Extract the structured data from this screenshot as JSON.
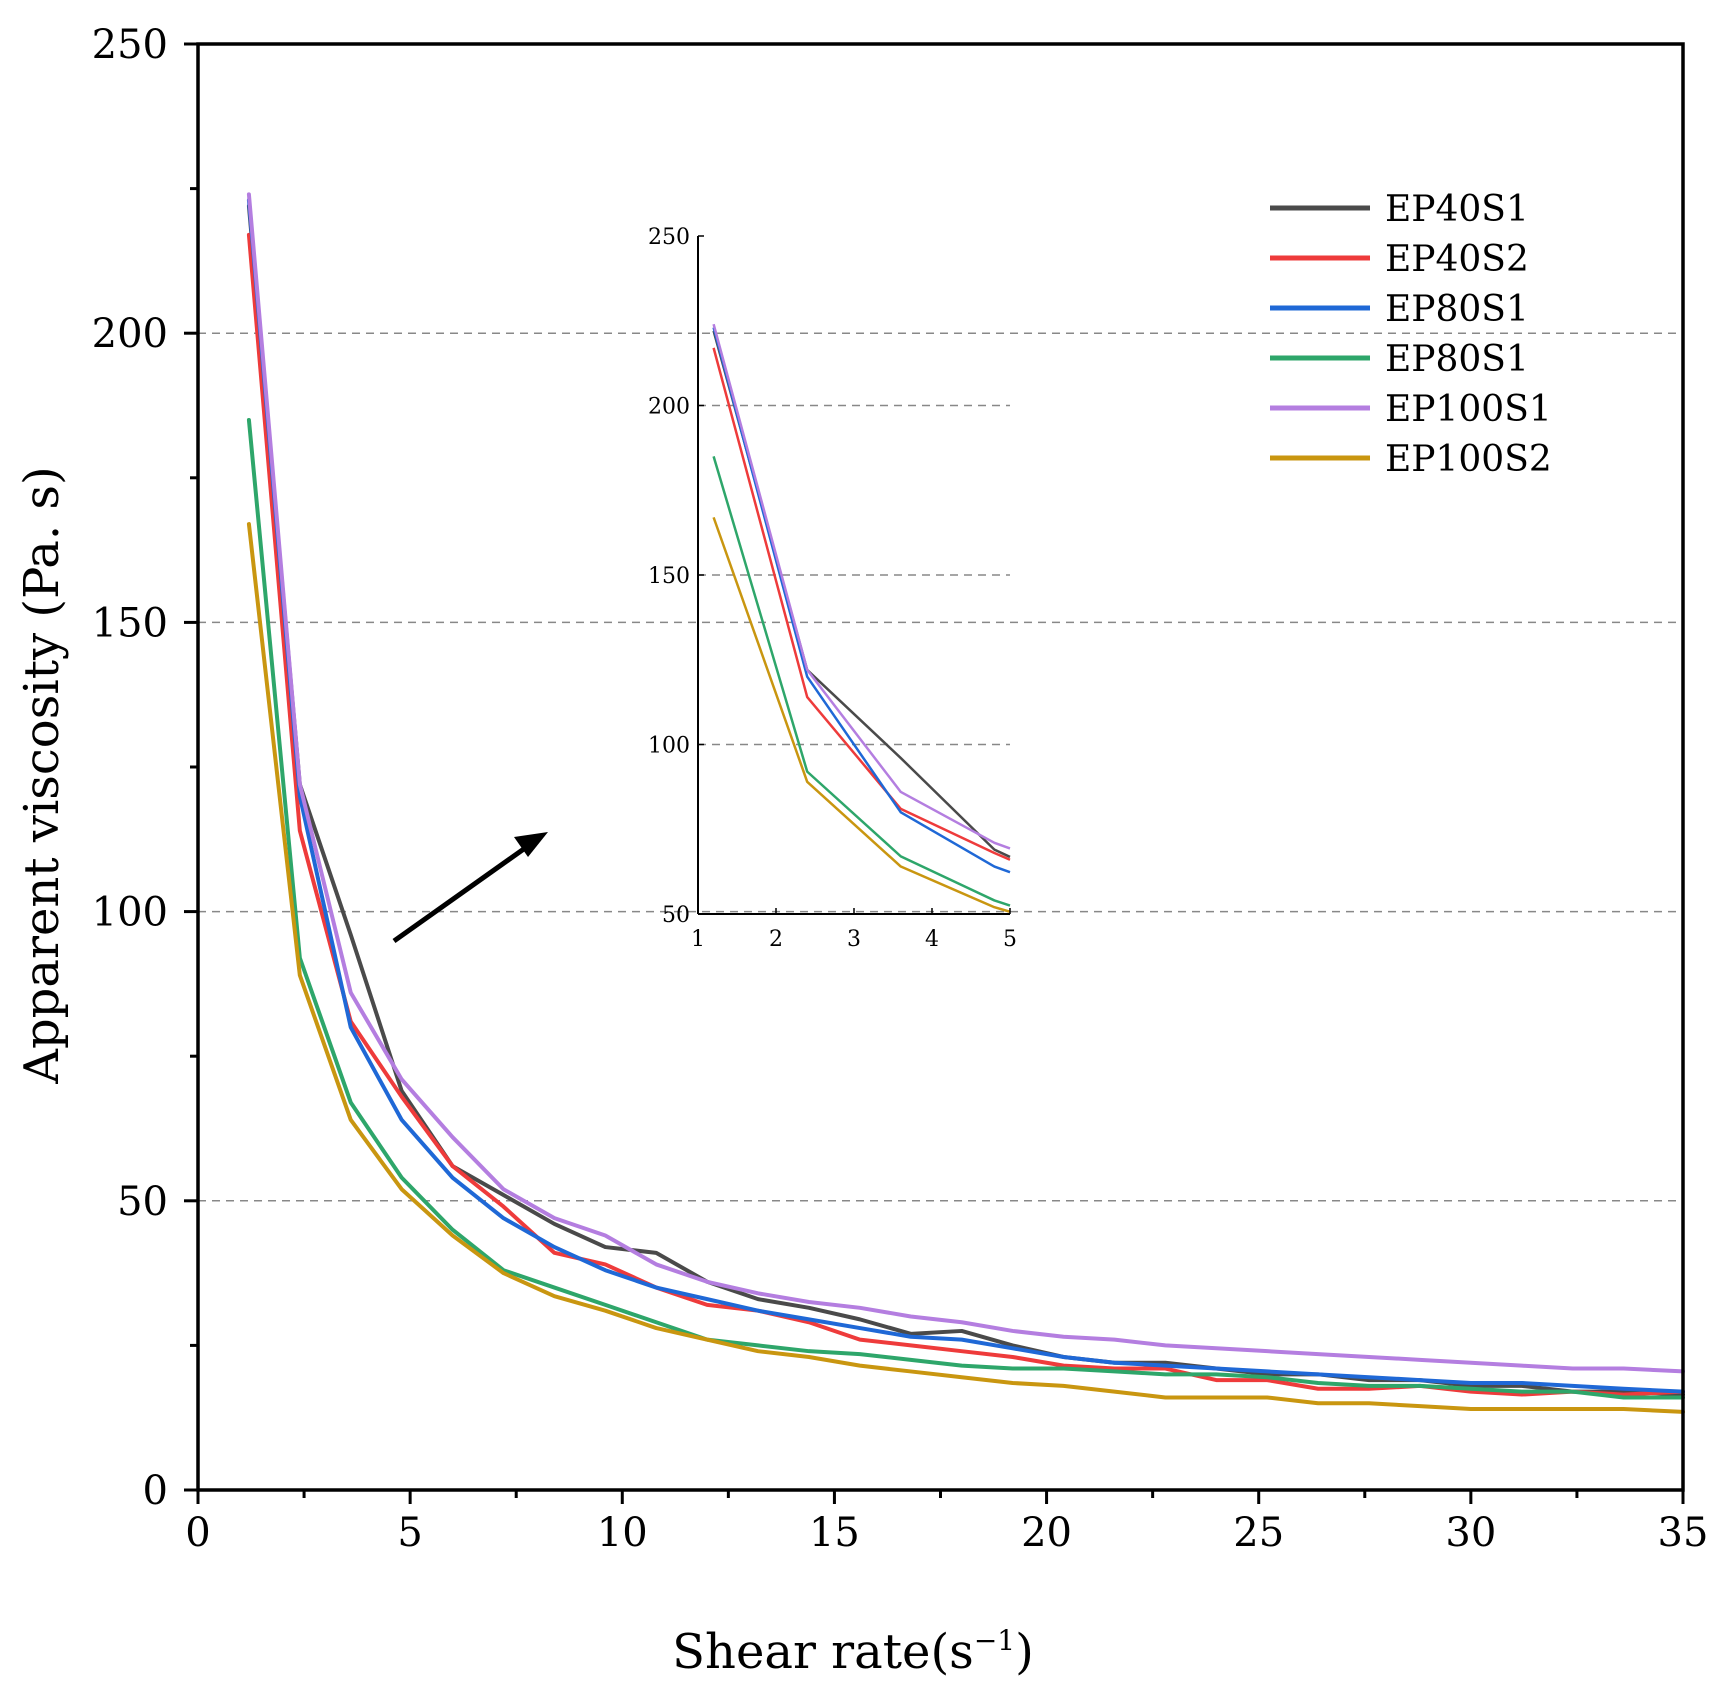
{
  "chart_data": {
    "type": "line",
    "xlabel": "Shear rate",
    "xlabel_unit_base": "s",
    "xlabel_unit_exp": "−1",
    "ylabel": "Apparent viscosity (Pa. s)",
    "xlim": [
      0,
      35
    ],
    "ylim": [
      0,
      250
    ],
    "x_ticks": [
      0,
      5,
      10,
      15,
      20,
      25,
      30,
      35
    ],
    "y_ticks": [
      0,
      50,
      100,
      150,
      200,
      250
    ],
    "x_tick_labels": [
      "0",
      "5",
      "10",
      "15",
      "20",
      "25",
      "30",
      "35"
    ],
    "y_tick_labels": [
      "0",
      "50",
      "100",
      "150",
      "200",
      "250"
    ],
    "grid_y": [
      50,
      100,
      150,
      200
    ],
    "legend_position": "top-right",
    "x": [
      1.2,
      2.4,
      3.6,
      4.8,
      6.0,
      7.2,
      8.4,
      9.6,
      10.8,
      12.0,
      13.2,
      14.4,
      15.6,
      16.8,
      18.0,
      19.2,
      20.4,
      21.6,
      22.8,
      24.0,
      25.2,
      26.4,
      27.6,
      28.8,
      30.0,
      31.2,
      32.4,
      33.6,
      35.0
    ],
    "series": [
      {
        "name": "EP40S1",
        "color": "#4a4a4a",
        "values": [
          222,
          122,
          96,
          69,
          56,
          51,
          46,
          42,
          41,
          36,
          33,
          31.5,
          29.5,
          27,
          27.5,
          25,
          23,
          22,
          22,
          21,
          20,
          20,
          19,
          19,
          18,
          18,
          17,
          17,
          16.5
        ]
      },
      {
        "name": "EP40S2",
        "color": "#ee3b3b",
        "values": [
          217,
          114,
          81,
          68,
          56,
          49,
          41,
          39,
          35,
          32,
          31,
          29,
          26,
          25,
          24,
          23,
          21.5,
          21,
          21,
          19,
          19,
          17.5,
          17.5,
          18,
          17,
          16.5,
          17,
          16.5,
          17
        ]
      },
      {
        "name": "EP80S1",
        "color": "#1f68d6",
        "values": [
          223,
          120,
          80,
          64,
          54,
          47,
          42,
          38,
          35,
          33,
          31,
          29.5,
          28,
          26.5,
          26,
          24.5,
          23,
          22,
          21.5,
          21,
          20.5,
          20,
          19.5,
          19,
          18.5,
          18.5,
          18,
          17.5,
          17
        ]
      },
      {
        "name": "EP80S1",
        "color": "#2ea66a",
        "values": [
          185,
          92,
          67,
          54,
          45,
          38,
          35,
          32,
          29,
          26,
          25,
          24,
          23.5,
          22.5,
          21.5,
          21,
          21,
          20.5,
          20,
          20,
          19.5,
          18.5,
          18,
          18,
          17.5,
          17,
          17,
          16,
          16
        ]
      },
      {
        "name": "EP100S1",
        "color": "#b47ee0",
        "values": [
          224,
          122,
          86,
          71,
          61,
          52,
          47,
          44,
          39,
          36,
          34,
          32.5,
          31.5,
          30,
          29,
          27.5,
          26.5,
          26,
          25,
          24.5,
          24,
          23.5,
          23,
          22.5,
          22,
          21.5,
          21,
          21,
          20.5
        ]
      },
      {
        "name": "EP100S2",
        "color": "#c99610",
        "values": [
          167,
          89,
          64,
          52,
          44,
          37.5,
          33.5,
          31,
          28,
          26,
          24,
          23,
          21.5,
          20.5,
          19.5,
          18.5,
          18,
          17,
          16,
          16,
          16,
          15,
          15,
          14.5,
          14,
          14,
          14,
          14,
          13.5
        ]
      }
    ],
    "inset": {
      "xlim": [
        1,
        5
      ],
      "ylim": [
        50,
        250
      ],
      "x_ticks": [
        1,
        2,
        3,
        4,
        5
      ],
      "y_ticks": [
        50,
        100,
        150,
        200,
        250
      ],
      "x_tick_labels": [
        "1",
        "2",
        "3",
        "4",
        "5"
      ],
      "y_tick_labels": [
        "50",
        "100",
        "150",
        "200",
        "250"
      ],
      "grid_y": [
        100,
        150,
        200
      ],
      "annotation": "arrow pointing from main chart to inset"
    }
  }
}
